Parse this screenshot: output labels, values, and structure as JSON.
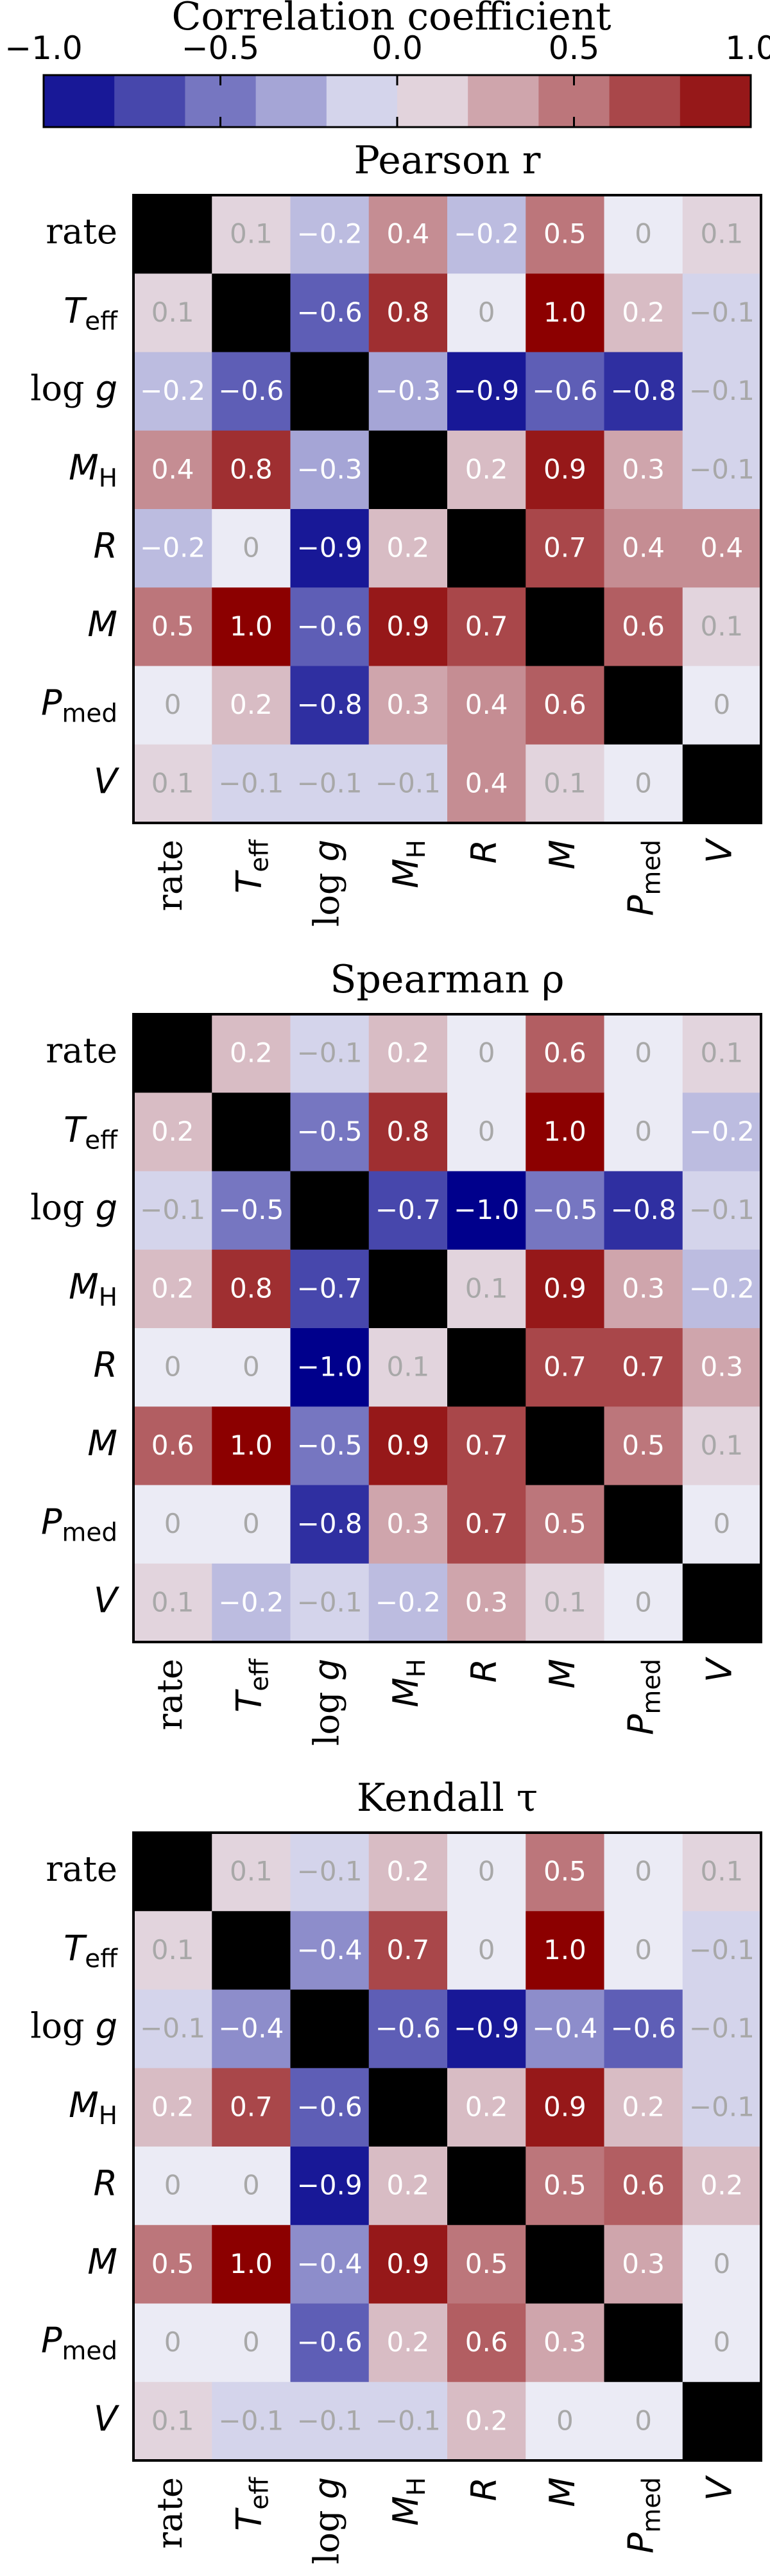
{
  "colorbar": {
    "label": "Correlation coefficient",
    "ticks": [
      "−1.0",
      "−0.5",
      "0.0",
      "0.5",
      "1.0"
    ],
    "tick_values": [
      -1.0,
      -0.5,
      0.0,
      0.5,
      1.0
    ],
    "range": [
      -1.0,
      1.0
    ],
    "segments": 10,
    "cmap": "bwr"
  },
  "colors": {
    "negative": "#00008c",
    "zero": "#ebebf5",
    "positive": "#8c0000",
    "diagonal": "#000000",
    "text_strong": "#ffffff",
    "text_weak": "#a8a8a8"
  },
  "chart_data": [
    {
      "type": "heatmap",
      "title": "Pearson r",
      "row_labels": [
        "rate",
        "T_eff",
        "log g",
        "M_H",
        "R",
        "M",
        "P_med",
        "V"
      ],
      "col_labels": [
        "rate",
        "T_eff",
        "log g",
        "M_H",
        "R",
        "M",
        "P_med",
        "V"
      ],
      "diagonal": "black",
      "values": [
        [
          null,
          0.1,
          -0.2,
          0.4,
          -0.2,
          0.5,
          0,
          0.1
        ],
        [
          0.1,
          null,
          -0.6,
          0.8,
          0,
          1.0,
          0.2,
          -0.1
        ],
        [
          -0.2,
          -0.6,
          null,
          -0.3,
          -0.9,
          -0.6,
          -0.8,
          -0.1
        ],
        [
          0.4,
          0.8,
          -0.3,
          null,
          0.2,
          0.9,
          0.3,
          -0.1
        ],
        [
          -0.2,
          0,
          -0.9,
          0.2,
          null,
          0.7,
          0.4,
          0.4
        ],
        [
          0.5,
          1.0,
          -0.6,
          0.9,
          0.7,
          null,
          0.6,
          0.1
        ],
        [
          0,
          0.2,
          -0.8,
          0.3,
          0.4,
          0.6,
          null,
          0
        ],
        [
          0.1,
          -0.1,
          -0.1,
          -0.1,
          0.4,
          0.1,
          0,
          null
        ]
      ]
    },
    {
      "type": "heatmap",
      "title": "Spearman ρ",
      "row_labels": [
        "rate",
        "T_eff",
        "log g",
        "M_H",
        "R",
        "M",
        "P_med",
        "V"
      ],
      "col_labels": [
        "rate",
        "T_eff",
        "log g",
        "M_H",
        "R",
        "M",
        "P_med",
        "V"
      ],
      "diagonal": "black",
      "values": [
        [
          null,
          0.2,
          -0.1,
          0.2,
          0,
          0.6,
          0,
          0.1
        ],
        [
          0.2,
          null,
          -0.5,
          0.8,
          0,
          1.0,
          0,
          -0.2
        ],
        [
          -0.1,
          -0.5,
          null,
          -0.7,
          -1.0,
          -0.5,
          -0.8,
          -0.1
        ],
        [
          0.2,
          0.8,
          -0.7,
          null,
          0.1,
          0.9,
          0.3,
          -0.2
        ],
        [
          0,
          0,
          -1.0,
          0.1,
          null,
          0.7,
          0.7,
          0.3
        ],
        [
          0.6,
          1.0,
          -0.5,
          0.9,
          0.7,
          null,
          0.5,
          0.1
        ],
        [
          0,
          0,
          -0.8,
          0.3,
          0.7,
          0.5,
          null,
          0
        ],
        [
          0.1,
          -0.2,
          -0.1,
          -0.2,
          0.3,
          0.1,
          0,
          null
        ]
      ]
    },
    {
      "type": "heatmap",
      "title": "Kendall τ",
      "row_labels": [
        "rate",
        "T_eff",
        "log g",
        "M_H",
        "R",
        "M",
        "P_med",
        "V"
      ],
      "col_labels": [
        "rate",
        "T_eff",
        "log g",
        "M_H",
        "R",
        "M",
        "P_med",
        "V"
      ],
      "diagonal": "black",
      "values": [
        [
          null,
          0.1,
          -0.1,
          0.2,
          0,
          0.5,
          0,
          0.1
        ],
        [
          0.1,
          null,
          -0.4,
          0.7,
          0,
          1.0,
          0,
          -0.1
        ],
        [
          -0.1,
          -0.4,
          null,
          -0.6,
          -0.9,
          -0.4,
          -0.6,
          -0.1
        ],
        [
          0.2,
          0.7,
          -0.6,
          null,
          0.2,
          0.9,
          0.2,
          -0.1
        ],
        [
          0,
          0,
          -0.9,
          0.2,
          null,
          0.5,
          0.6,
          0.2
        ],
        [
          0.5,
          1.0,
          -0.4,
          0.9,
          0.5,
          null,
          0.3,
          0
        ],
        [
          0,
          0,
          -0.6,
          0.2,
          0.6,
          0.3,
          null,
          0
        ],
        [
          0.1,
          -0.1,
          -0.1,
          -0.1,
          0.2,
          0,
          0,
          null
        ]
      ]
    }
  ]
}
